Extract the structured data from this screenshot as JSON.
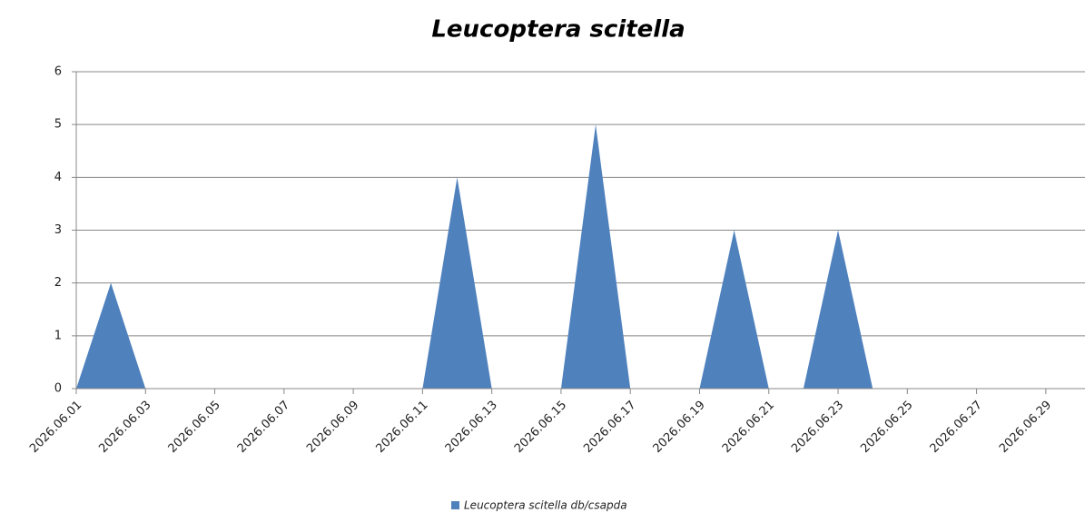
{
  "chart_data": {
    "type": "area",
    "title": "Leucoptera scitella",
    "categories": [
      "2026.06.01",
      null,
      "2026.06.03",
      null,
      "2026.06.05",
      null,
      "2026.06.07",
      null,
      "2026.06.09",
      null,
      "2026.06.11",
      null,
      "2026.06.13",
      null,
      "2026.06.15",
      null,
      "2026.06.17",
      null,
      "2026.06.19",
      null,
      "2026.06.21",
      null,
      "2026.06.23",
      null,
      "2026.06.25",
      null,
      "2026.06.27",
      null,
      "2026.06.29",
      null
    ],
    "series": [
      {
        "name": "Leucoptera scitella db/csapda",
        "color": "#4f81bd",
        "values": [
          0,
          2,
          0,
          0,
          0,
          0,
          0,
          0,
          0,
          0,
          0,
          4,
          0,
          0,
          0,
          5,
          0,
          0,
          0,
          3,
          0,
          0,
          3,
          0,
          0,
          0,
          0,
          0,
          0,
          0
        ]
      }
    ],
    "ylim": [
      0,
      6
    ],
    "yticks": [
      0,
      1,
      2,
      3,
      4,
      5,
      6
    ],
    "grid": true,
    "legend": "bottom"
  }
}
